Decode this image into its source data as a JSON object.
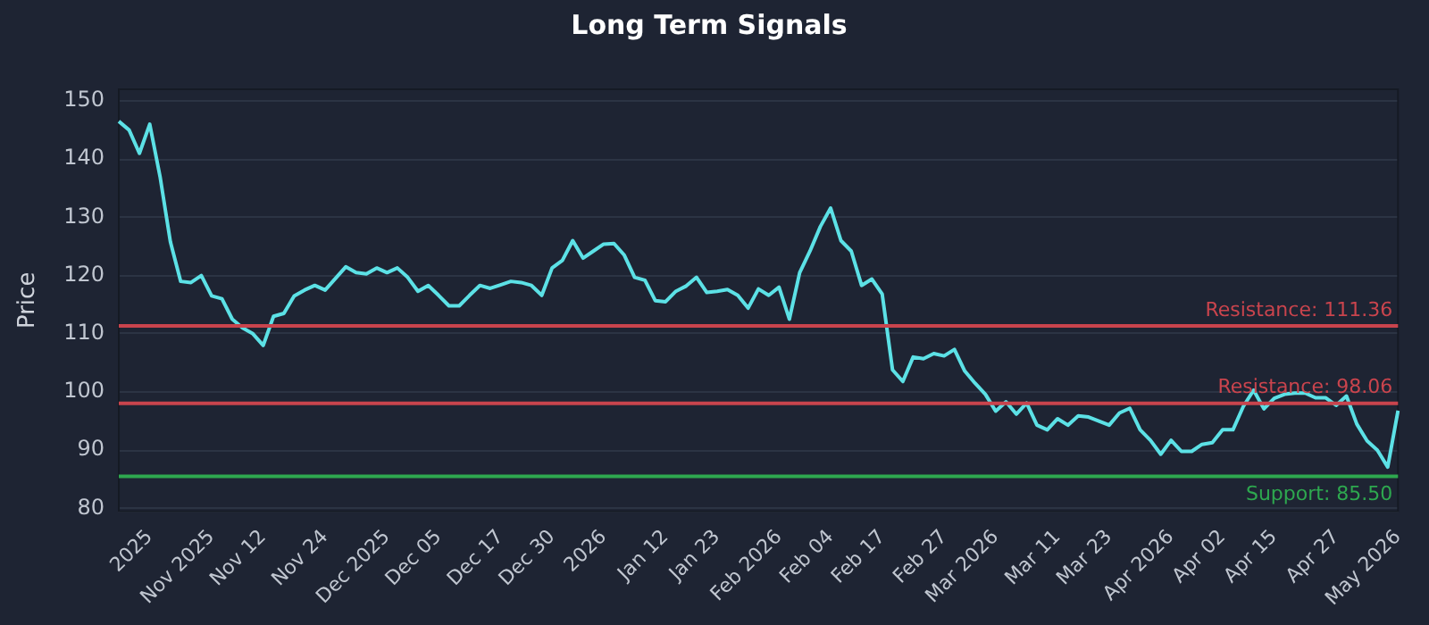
{
  "chart_data": {
    "type": "line",
    "title": "Long Term Signals",
    "ylabel": "Price",
    "categories": [
      null,
      null,
      null,
      "2025",
      null,
      null,
      null,
      null,
      null,
      "Nov 2025",
      null,
      null,
      null,
      null,
      "Nov 12",
      null,
      null,
      null,
      null,
      null,
      "Nov 24",
      null,
      null,
      null,
      null,
      null,
      "Dec 2025",
      null,
      null,
      null,
      null,
      "Dec 05",
      null,
      null,
      null,
      null,
      null,
      "Dec 17",
      null,
      null,
      null,
      null,
      "Dec 30",
      null,
      null,
      null,
      null,
      "2026",
      null,
      null,
      null,
      null,
      null,
      "Jan 12",
      null,
      null,
      null,
      null,
      "Jan 23",
      null,
      null,
      null,
      null,
      null,
      "Feb 2026",
      null,
      null,
      null,
      null,
      "Feb 04",
      null,
      null,
      null,
      null,
      "Feb 17",
      null,
      null,
      null,
      null,
      null,
      "Feb 27",
      null,
      null,
      null,
      null,
      "Mar 2026",
      null,
      null,
      null,
      null,
      null,
      "Mar 11",
      null,
      null,
      null,
      null,
      "Mar 23",
      null,
      null,
      null,
      null,
      null,
      "Apr 2026",
      null,
      null,
      null,
      null,
      "Apr 02",
      null,
      null,
      null,
      null,
      "Apr 15",
      null,
      null,
      null,
      null,
      null,
      "Apr 27",
      null,
      null,
      null,
      null,
      null,
      "May 2026"
    ],
    "series": [
      {
        "color": "#5ce1e6",
        "values": [
          146.5,
          145,
          141,
          146,
          137,
          125.8,
          119,
          118.8,
          120,
          116.5,
          116,
          112.5,
          111,
          110,
          108,
          113,
          113.5,
          116.5,
          117.5,
          118.3,
          117.5,
          119.5,
          121.5,
          120.5,
          120.3,
          121.3,
          120.5,
          121.3,
          119.7,
          117.3,
          118.3,
          116.6,
          114.8,
          114.8,
          116.6,
          118.3,
          117.8,
          118.4,
          119,
          118.8,
          118.3,
          116.6,
          121.3,
          122.6,
          126,
          123,
          124.2,
          125.4,
          125.5,
          123.5,
          119.7,
          119.2,
          115.7,
          115.5,
          117.3,
          118.2,
          119.7,
          117.1,
          117.3,
          117.6,
          116.6,
          114.4,
          117.7,
          116.6,
          118,
          112.5,
          120.5,
          124.2,
          128.4,
          131.6,
          126,
          124.2,
          118.3,
          119.4,
          116.8,
          103.8,
          101.8,
          106,
          105.7,
          106.6,
          106.2,
          107.3,
          103.6,
          101.5,
          99.6,
          96.7,
          98.3,
          96.2,
          98.1,
          94.3,
          93.5,
          95.4,
          94.3,
          95.9,
          95.7,
          95,
          94.3,
          96.4,
          97.2,
          93.5,
          91.7,
          89.3,
          91.7,
          89.8,
          89.8,
          91,
          91.3,
          93.5,
          93.5,
          97.5,
          100.3,
          97.1,
          98.9,
          99.6,
          99.8,
          99.8,
          99,
          99,
          97.7,
          99.3,
          94.5,
          91.6,
          90,
          87.1,
          96.8
        ]
      }
    ],
    "ylim": [
      79.5,
      152
    ],
    "yticks": [
      80,
      90,
      100,
      110,
      120,
      130,
      140,
      150
    ],
    "grid": "y",
    "legend": false,
    "marker": "none",
    "line_style": "solid",
    "ref_lines": [
      {
        "axis": "y",
        "value": 111.36,
        "label": "Resistance: 111.36",
        "color": "#c9444d"
      },
      {
        "axis": "y",
        "value": 98.06,
        "label": "Resistance: 98.06",
        "color": "#c9444d"
      },
      {
        "axis": "y",
        "value": 85.5,
        "label": "Support: 85.50",
        "color": "#2ea84f"
      }
    ]
  }
}
